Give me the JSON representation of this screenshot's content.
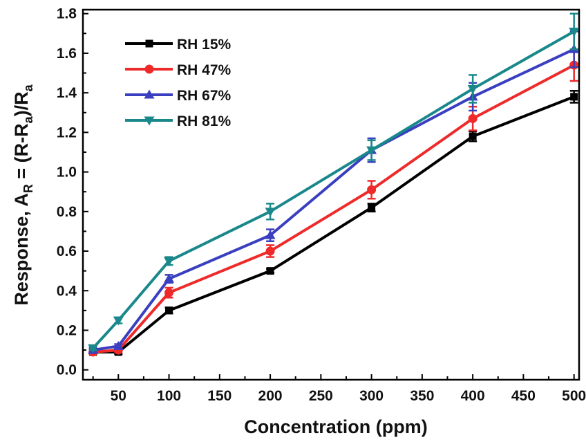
{
  "chart_data": {
    "type": "line",
    "xlabel": "Concentration (ppm)",
    "ylabel": {
      "prefix": "Response, A",
      "sub1": "R",
      "mid1": " = (R-R",
      "sub2": "a",
      "mid2": ")/R",
      "sub3": "a"
    },
    "xlim": [
      15,
      505
    ],
    "ylim": [
      -0.05,
      1.82
    ],
    "xticks": [
      50,
      100,
      150,
      200,
      250,
      300,
      350,
      400,
      450,
      500
    ],
    "yticks": [
      0.0,
      0.2,
      0.4,
      0.6,
      0.8,
      1.0,
      1.2,
      1.4,
      1.6,
      1.8
    ],
    "x": [
      25,
      50,
      100,
      200,
      300,
      400,
      500
    ],
    "legend_position": "top-left",
    "grid": false,
    "series": [
      {
        "name": "RH 15%",
        "color": "#000000",
        "marker": "square",
        "values": [
          0.09,
          0.09,
          0.3,
          0.5,
          0.82,
          1.18,
          1.38
        ],
        "errors": [
          0.01,
          0.01,
          0.015,
          0.01,
          0.02,
          0.025,
          0.03
        ]
      },
      {
        "name": "RH 47%",
        "color": "#ee2a2a",
        "marker": "circle",
        "values": [
          0.09,
          0.1,
          0.39,
          0.6,
          0.91,
          1.27,
          1.54
        ],
        "errors": [
          0.01,
          0.01,
          0.025,
          0.03,
          0.045,
          0.06,
          0.08
        ]
      },
      {
        "name": "RH 67%",
        "color": "#3a3fbf",
        "marker": "triangle-up",
        "values": [
          0.1,
          0.12,
          0.46,
          0.68,
          1.11,
          1.38,
          1.62
        ],
        "errors": [
          0.01,
          0.01,
          0.02,
          0.03,
          0.06,
          0.07,
          0.09
        ]
      },
      {
        "name": "RH 81%",
        "color": "#19888a",
        "marker": "triangle-down",
        "values": [
          0.11,
          0.25,
          0.55,
          0.8,
          1.11,
          1.42,
          1.71
        ],
        "errors": [
          0.01,
          0.015,
          0.02,
          0.04,
          0.05,
          0.07,
          0.09
        ]
      }
    ]
  }
}
